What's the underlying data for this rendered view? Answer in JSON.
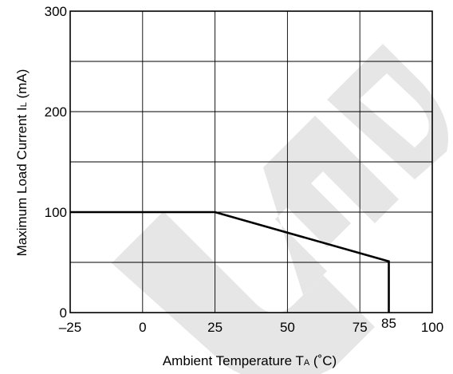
{
  "chart_data": {
    "type": "line",
    "xlabel": {
      "main": "Ambient Temperature  T",
      "sub": "A",
      "unit": " (˚C)"
    },
    "ylabel": {
      "main": "Maximum Load Current  I",
      "sub": "L",
      "unit": " (mA)"
    },
    "xlim": [
      -25,
      100
    ],
    "ylim": [
      0,
      300
    ],
    "x_ticks": [
      -25,
      0,
      25,
      50,
      75,
      100
    ],
    "x_tick_labels": [
      "–25",
      "0",
      "25",
      "50",
      "75",
      "100"
    ],
    "y_ticks": [
      0,
      100,
      200,
      300
    ],
    "y_tick_labels": [
      "0",
      "100",
      "200",
      "300"
    ],
    "x_grid": [
      -25,
      0,
      25,
      50,
      75,
      100
    ],
    "y_grid": [
      0,
      50,
      100,
      150,
      200,
      250,
      300
    ],
    "grid": true,
    "extra_label": {
      "x": 85,
      "text": "85"
    },
    "series": [
      {
        "x": [
          -25,
          25,
          85,
          85
        ],
        "y": [
          100,
          100,
          51,
          0
        ]
      }
    ],
    "watermark": {
      "text": "UED",
      "color": "#e6e6e6"
    }
  }
}
